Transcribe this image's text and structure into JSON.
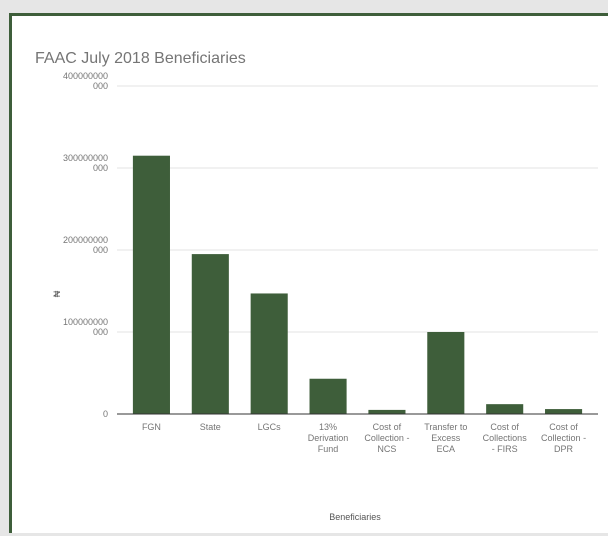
{
  "chart_data": {
    "type": "bar",
    "title": "FAAC July 2018 Beneficiaries",
    "xlabel": "Beneficiaries",
    "ylabel": "₦",
    "ylim": [
      0,
      400000000000
    ],
    "yticks": [
      {
        "value": 0,
        "lines": [
          "0"
        ]
      },
      {
        "value": 100000000000,
        "lines": [
          "100000000",
          "000"
        ]
      },
      {
        "value": 200000000000,
        "lines": [
          "200000000",
          "000"
        ]
      },
      {
        "value": 300000000000,
        "lines": [
          "300000000",
          "000"
        ]
      },
      {
        "value": 400000000000,
        "lines": [
          "400000000",
          "000"
        ]
      }
    ],
    "categories": [
      [
        "FGN"
      ],
      [
        "State"
      ],
      [
        "LGCs"
      ],
      [
        "13%",
        "Derivation",
        "Fund"
      ],
      [
        "Cost of",
        "Collection -",
        "NCS"
      ],
      [
        "Transfer to",
        "Excess",
        "ECA"
      ],
      [
        "Cost of",
        "Collections",
        "- FIRS"
      ],
      [
        "Cost of",
        "Collection -",
        "DPR"
      ]
    ],
    "values": [
      315000000000,
      195000000000,
      147000000000,
      43000000000,
      5000000000,
      100000000000,
      12000000000,
      6000000000
    ],
    "grid": true,
    "legend": "none",
    "bar_color": "#3e5e3a"
  }
}
